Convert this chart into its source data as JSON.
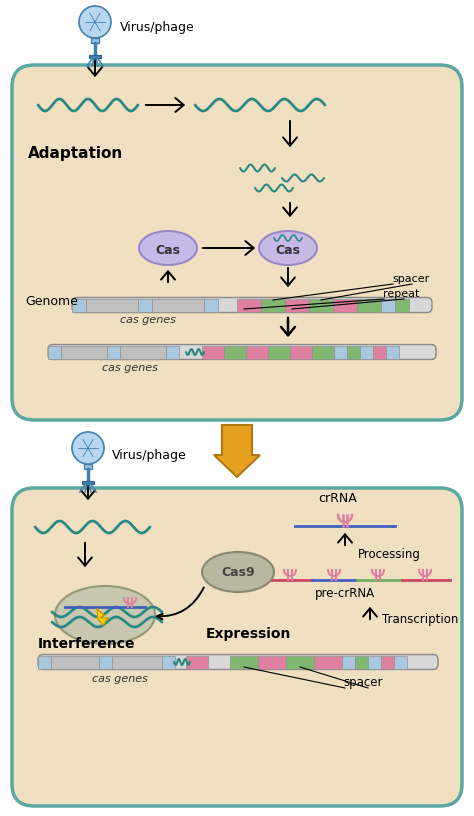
{
  "bg_color": "#f0dfc0",
  "border_color": "#5ba8a0",
  "white_bg": "#ffffff",
  "title1": "Adaptation",
  "title2": "Interference",
  "title3": "Expression",
  "virus_label": "Virus/phage",
  "cas_label": "Cas",
  "cas9_label": "Cas9",
  "genome_label": "Genome",
  "cas_genes_label": "cas genes",
  "spacer_label": "spacer",
  "repeat_label": "repeat",
  "crRNA_label": "crRNA",
  "pre_crRNA_label": "pre-crRNA",
  "processing_label": "Processing",
  "transcription_label": "Transcription",
  "teal": "#2a8a82",
  "purple": "#9b87c8",
  "purple_light": "#c8b8e8",
  "pink": "#e080a0",
  "green": "#80b870",
  "blue_light": "#a8c8e0",
  "gray_seg": "#c0c0c0",
  "gray_light": "#d8d8d8",
  "red": "#cc2222",
  "yellow": "#ffd700",
  "arrow_gold": "#e8a020",
  "arrow_gold_edge": "#b07810",
  "cas9_fill": "#b8b8a0",
  "cas9_edge": "#888870",
  "interf_fill": "#c8c8b0",
  "interf_edge": "#909878"
}
